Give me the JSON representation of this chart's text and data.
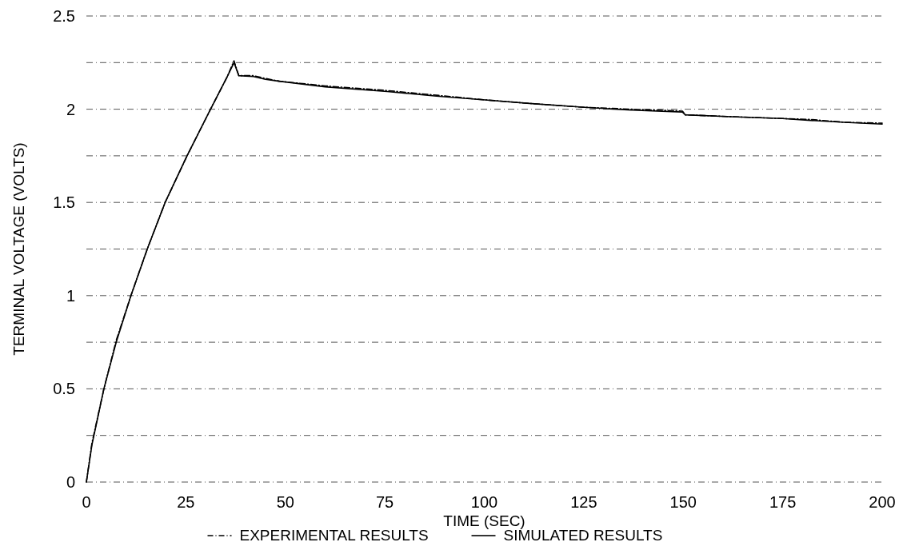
{
  "chart_data": {
    "type": "line",
    "xlabel": "TIME (SEC)",
    "ylabel": "TERMINAL VOLTAGE (VOLTS)",
    "xlim": [
      0,
      200
    ],
    "xticks": [
      0,
      25,
      50,
      75,
      100,
      125,
      150,
      175,
      200
    ],
    "ylim": [
      0,
      2.5
    ],
    "yticks": [
      0,
      {
        "value": 0.25,
        "label": null
      },
      0.5,
      {
        "value": 0.75,
        "label": null
      },
      1,
      {
        "value": 1.25,
        "label": null
      },
      1.5,
      {
        "value": 1.75,
        "label": null
      },
      2,
      {
        "value": 2.25,
        "label": null
      },
      2.5
    ],
    "grid": "y",
    "legend": "bottom",
    "series": [
      {
        "name": "EXPERIMENTAL RESULTS",
        "color": "#000000",
        "line_style": "dashed",
        "x": [
          0,
          1.4,
          4.4,
          7.5,
          11.2,
          15.3,
          19.8,
          25.3,
          31.2,
          35.3,
          37.1,
          38.3,
          42,
          45,
          48.5,
          60,
          75.6,
          88,
          100.2,
          112,
          125.3,
          137,
          149.8,
          150.5,
          162,
          174.9,
          182,
          190.5,
          200
        ],
        "values": [
          0,
          0.21,
          0.5,
          0.76,
          1,
          1.25,
          1.5,
          1.75,
          2,
          2.17,
          2.26,
          2.18,
          2.18,
          2.165,
          2.15,
          2.125,
          2.1,
          2.075,
          2.05,
          2.03,
          2.01,
          2.0,
          1.99,
          1.97,
          1.96,
          1.95,
          1.945,
          1.93,
          1.925
        ]
      },
      {
        "name": "SIMULATED RESULTS",
        "color": "#000000",
        "line_style": "solid",
        "x": [
          0,
          1.4,
          4.4,
          7.5,
          11.2,
          15.3,
          19.8,
          25.3,
          31.2,
          35.3,
          37.1,
          38.3,
          42,
          45,
          48.5,
          60,
          75.6,
          88,
          100.2,
          112,
          125.3,
          137,
          149.8,
          150.5,
          162,
          174.9,
          182,
          190.5,
          200
        ],
        "values": [
          0,
          0.2,
          0.5,
          0.75,
          1,
          1.25,
          1.5,
          1.75,
          2,
          2.17,
          2.25,
          2.18,
          2.175,
          2.16,
          2.15,
          2.12,
          2.095,
          2.07,
          2.05,
          2.03,
          2.01,
          1.995,
          1.985,
          1.97,
          1.96,
          1.95,
          1.94,
          1.93,
          1.92
        ]
      }
    ]
  }
}
